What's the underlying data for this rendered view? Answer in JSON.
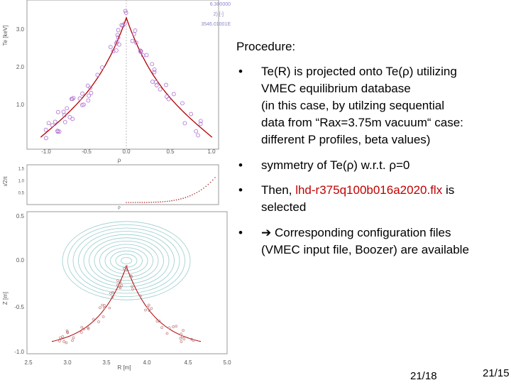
{
  "slide": {
    "heading": "Procedure:",
    "bullets": [
      {
        "marker": "•",
        "lines": [
          [
            {
              "text": "Te(R) is projected onto Te(ρ) utilizing"
            }
          ],
          [
            {
              "text": "VMEC equilibrium database"
            }
          ],
          [
            {
              "text": "(in this case, by utilzing sequential"
            }
          ],
          [
            {
              "text": "data from “Rax=3.75m vacuum“ case:"
            }
          ],
          [
            {
              "text": "different P profiles, beta values)"
            }
          ]
        ]
      },
      {
        "marker": "•",
        "lines": [
          [
            {
              "text": "symmetry of Te(ρ) w.r.t. ρ=0"
            }
          ]
        ]
      },
      {
        "marker": "•",
        "lines": [
          [
            {
              "text": "Then, "
            },
            {
              "text": "lhd-r375q100b016a2020.flx",
              "highlight": true
            },
            {
              "text": " is"
            }
          ],
          [
            {
              "text": "selected"
            }
          ]
        ]
      },
      {
        "marker": "•",
        "lines": [
          [
            {
              "text": "➔ Corresponding configuration files"
            }
          ],
          [
            {
              "text": "(VMEC input file, Boozer) are available"
            }
          ]
        ]
      }
    ],
    "page_numbers": [
      "21/18",
      "21/15"
    ]
  },
  "figure": {
    "top_notes": [
      "6.300000",
      "2)   [-]",
      "3546.01001E"
    ],
    "profile": {
      "ylabel": "Te [keV]",
      "xlabel": "ρ",
      "xticks": [
        "-1.0",
        "-0.5",
        "0.0",
        "0.5",
        "1.0"
      ],
      "yticks": [
        "3.0",
        "2.0",
        "1.0"
      ]
    },
    "iota": {
      "ylabel": "ι/2π",
      "xlabel": "ρ",
      "yticks": [
        "1.5",
        "1.0",
        "0.5"
      ]
    },
    "surfaces": {
      "ylabel": "Z [m]",
      "xlabel": "R [m]",
      "xticks": [
        "2.5",
        "3.0",
        "3.5",
        "4.0",
        "4.5",
        "5.0"
      ],
      "yticks": [
        "0.5",
        "0.0",
        "-0.5",
        "-1.0"
      ]
    }
  }
}
